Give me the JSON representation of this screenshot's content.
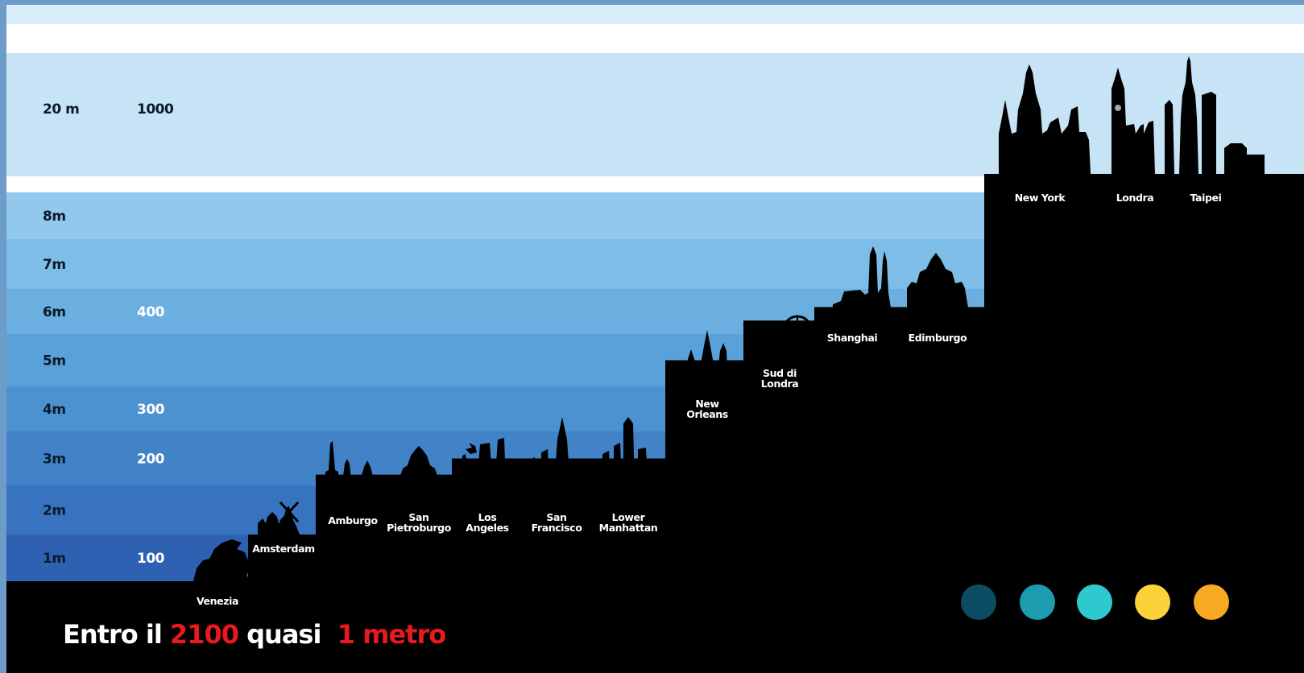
{
  "chart_data": {
    "type": "bar",
    "title_parts": [
      {
        "text": "Entro il ",
        "color": "#ffffff"
      },
      {
        "text": "2100",
        "color": "#e8191f"
      },
      {
        "text": " quasi  ",
        "color": "#ffffff"
      },
      {
        "text": "1 metro",
        "color": "#e8191f"
      }
    ],
    "levels": [
      {
        "label": "1m",
        "value": 1,
        "year": "100"
      },
      {
        "label": "2m",
        "value": 2,
        "year": ""
      },
      {
        "label": "3m",
        "value": 3,
        "year": "200"
      },
      {
        "label": "4m",
        "value": 4,
        "year": "300"
      },
      {
        "label": "5m",
        "value": 5,
        "year": ""
      },
      {
        "label": "6m",
        "value": 6,
        "year": "400"
      },
      {
        "label": "7m",
        "value": 7,
        "year": ""
      },
      {
        "label": "8m",
        "value": 8,
        "year": ""
      },
      {
        "label": "20 m",
        "value": 20,
        "year": "1000"
      }
    ],
    "cities": [
      {
        "name": "Venezia",
        "value": 0
      },
      {
        "name": "Amsterdam",
        "value": 1
      },
      {
        "name": "Amburgo",
        "value": 2.2
      },
      {
        "name": "San Pietroburgo",
        "value": 2.2
      },
      {
        "name": "Los Angeles",
        "value": 2.5
      },
      {
        "name": "San Francisco",
        "value": 2.5
      },
      {
        "name": "Lower Manhattan",
        "value": 2.5
      },
      {
        "name": "New Orleans",
        "value": 4.5
      },
      {
        "name": "Sud di Londra",
        "value": 5.3
      },
      {
        "name": "Shanghai",
        "value": 5.6
      },
      {
        "name": "Edimburgo",
        "value": 5.6
      },
      {
        "name": "New York",
        "value": 20
      },
      {
        "name": "Londra",
        "value": 20
      },
      {
        "name": "Taipei",
        "value": 20
      }
    ],
    "legend_dots": [
      "#0d4d63",
      "#1d9cb0",
      "#2ec9cf",
      "#fcd23a",
      "#f7a921"
    ],
    "colors": {
      "band_1": "#2f61b3",
      "band_2": "#3873bf",
      "band_3": "#4283c8",
      "band_4": "#4d92d0",
      "band_5": "#5aa1d9",
      "band_6": "#6aafe0",
      "band_7": "#7dbde7",
      "band_8": "#91c8ec",
      "band_20": "#c6e4f5",
      "ground": "#000000"
    }
  }
}
